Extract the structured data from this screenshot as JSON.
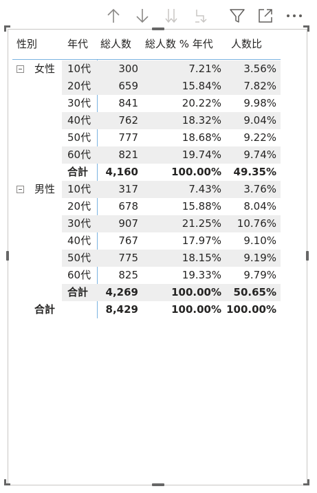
{
  "toolbar": {
    "icons": [
      "arrow-up-icon",
      "arrow-down-icon",
      "double-arrow-down-icon",
      "expand-hierarchy-icon",
      "filter-icon",
      "focus-mode-icon",
      "more-options-icon"
    ]
  },
  "matrix": {
    "headers": {
      "gender": "性別",
      "age": "年代",
      "total": "総人数",
      "pct_age": "総人数 % 年代",
      "ratio": "人数比"
    },
    "groups": [
      {
        "label": "女性",
        "rows": [
          {
            "age": "10代",
            "total": "300",
            "pct_age": "7.21%",
            "ratio": "3.56%"
          },
          {
            "age": "20代",
            "total": "659",
            "pct_age": "15.84%",
            "ratio": "7.82%"
          },
          {
            "age": "30代",
            "total": "841",
            "pct_age": "20.22%",
            "ratio": "9.98%"
          },
          {
            "age": "40代",
            "total": "762",
            "pct_age": "18.32%",
            "ratio": "9.04%"
          },
          {
            "age": "50代",
            "total": "777",
            "pct_age": "18.68%",
            "ratio": "9.22%"
          },
          {
            "age": "60代",
            "total": "821",
            "pct_age": "19.74%",
            "ratio": "9.74%"
          }
        ],
        "subtotal": {
          "label": "合計",
          "total": "4,160",
          "pct_age": "100.00%",
          "ratio": "49.35%"
        }
      },
      {
        "label": "男性",
        "rows": [
          {
            "age": "10代",
            "total": "317",
            "pct_age": "7.43%",
            "ratio": "3.76%"
          },
          {
            "age": "20代",
            "total": "678",
            "pct_age": "15.88%",
            "ratio": "8.04%"
          },
          {
            "age": "30代",
            "total": "907",
            "pct_age": "21.25%",
            "ratio": "10.76%"
          },
          {
            "age": "40代",
            "total": "767",
            "pct_age": "17.97%",
            "ratio": "9.10%"
          },
          {
            "age": "50代",
            "total": "775",
            "pct_age": "18.15%",
            "ratio": "9.19%"
          },
          {
            "age": "60代",
            "total": "825",
            "pct_age": "19.33%",
            "ratio": "9.79%"
          }
        ],
        "subtotal": {
          "label": "合計",
          "total": "4,269",
          "pct_age": "100.00%",
          "ratio": "50.65%"
        }
      }
    ],
    "grand_total": {
      "label": "合計",
      "total": "8,429",
      "pct_age": "100.00%",
      "ratio": "100.00%"
    }
  }
}
